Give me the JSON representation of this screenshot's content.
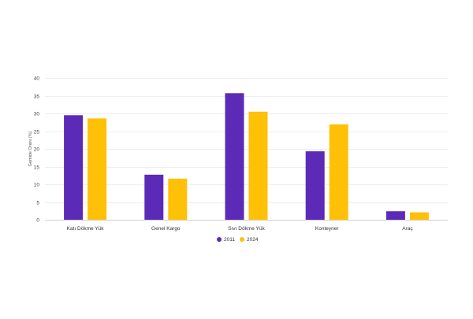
{
  "chart_data": {
    "type": "bar",
    "ylabel": "Gemide Oranı (%)",
    "xlabel": "",
    "ylim": [
      0,
      40
    ],
    "yticks": [
      0,
      5,
      10,
      15,
      20,
      25,
      30,
      35,
      40
    ],
    "grid": true,
    "legend_position": "bottom-center",
    "categories": [
      "Katı Dökme Yük",
      "Genel Kargo",
      "Sıvı Dökme Yük",
      "Konteyner",
      "Araç"
    ],
    "series": [
      {
        "name": "2011",
        "color": "#5b2bb8",
        "values": [
          29.5,
          12.7,
          35.7,
          19.3,
          2.4
        ]
      },
      {
        "name": "2024",
        "color": "#ffc107",
        "values": [
          28.6,
          11.6,
          30.5,
          26.9,
          2.1
        ]
      }
    ]
  }
}
